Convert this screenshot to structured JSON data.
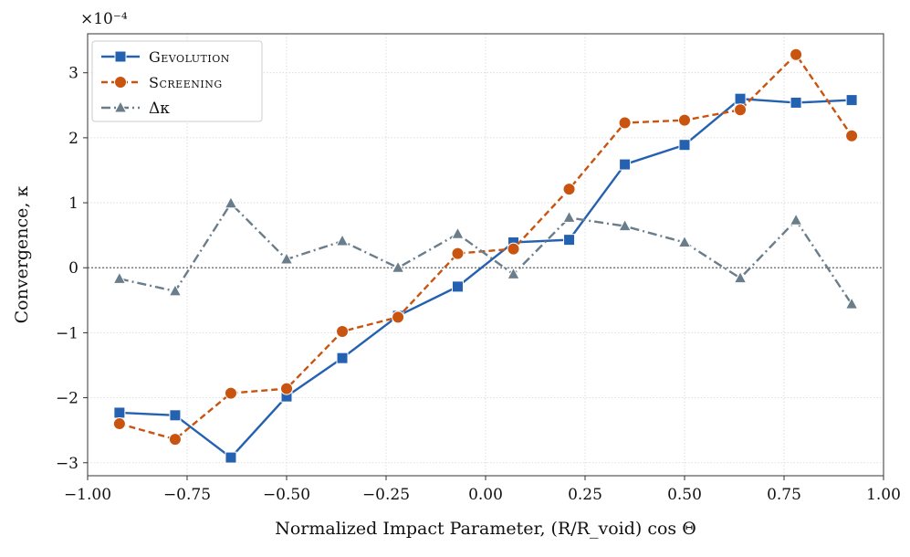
{
  "chart_data": {
    "type": "line",
    "title": "",
    "xlabel": "Normalized Impact Parameter, (R/R_void) cos Θ",
    "ylabel": "Convergence, κ",
    "y_multiplier_label": "×10⁻⁴",
    "xlim": [
      -1.0,
      1.0
    ],
    "ylim": [
      -3.2,
      3.6
    ],
    "xticks": [
      -1.0,
      -0.75,
      -0.5,
      -0.25,
      0.0,
      0.25,
      0.5,
      0.75,
      1.0
    ],
    "xtick_labels": [
      "−1.00",
      "−0.75",
      "−0.50",
      "−0.25",
      "0.00",
      "0.25",
      "0.50",
      "0.75",
      "1.00"
    ],
    "yticks": [
      -3,
      -2,
      -1,
      0,
      1,
      2,
      3
    ],
    "ytick_labels": [
      "−3",
      "−2",
      "−1",
      "0",
      "1",
      "2",
      "3"
    ],
    "grid": true,
    "zero_line": true,
    "legend_position": "top-left",
    "x": [
      -0.92,
      -0.78,
      -0.64,
      -0.5,
      -0.36,
      -0.22,
      -0.07,
      0.07,
      0.21,
      0.35,
      0.5,
      0.64,
      0.78,
      0.92
    ],
    "series": [
      {
        "name": "Gevolution",
        "legend_label": "Gevolution",
        "color": "#2461b0",
        "marker": "square",
        "linestyle": "solid",
        "values": [
          -2.23,
          -2.27,
          -2.92,
          -1.98,
          -1.39,
          -0.74,
          -0.29,
          0.39,
          0.43,
          1.59,
          1.89,
          2.6,
          2.54,
          2.58
        ]
      },
      {
        "name": "Screening",
        "legend_label": "Screening",
        "color": "#c85410",
        "marker": "circle",
        "linestyle": "dashed",
        "values": [
          -2.4,
          -2.64,
          -1.93,
          -1.86,
          -0.98,
          -0.76,
          0.22,
          0.29,
          1.21,
          2.23,
          2.27,
          2.43,
          3.28,
          2.03
        ]
      },
      {
        "name": "Δκ",
        "legend_label": "Δκ",
        "color": "#6a7d8b",
        "marker": "triangle",
        "linestyle": "dashdot",
        "values": [
          -0.17,
          -0.36,
          0.99,
          0.13,
          0.41,
          0.0,
          0.52,
          -0.1,
          0.77,
          0.64,
          0.39,
          -0.16,
          0.73,
          -0.56
        ]
      }
    ]
  }
}
